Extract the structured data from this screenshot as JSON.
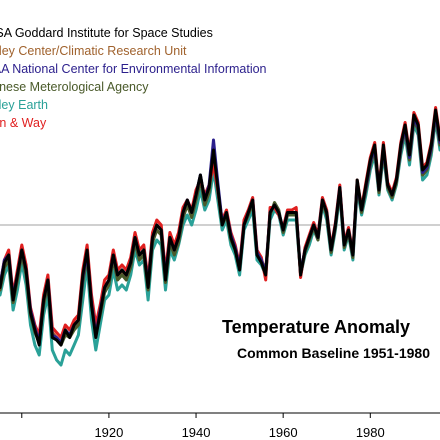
{
  "chart_data": {
    "type": "line",
    "title": "Temperature Anomaly",
    "subtitle": "Common Baseline 1951-1980",
    "xlabel": "",
    "ylabel": "",
    "xlim": [
      1895,
      1996
    ],
    "ylim": [
      -0.72,
      0.88
    ],
    "x_ticks": [
      "1920",
      "1940",
      "1960",
      "1980"
    ],
    "x_tick_values": [
      1920,
      1940,
      1960,
      1980
    ],
    "grid": false,
    "zero_line": true,
    "legend_placement": "top-left",
    "x": [
      1895,
      1896,
      1897,
      1898,
      1899,
      1900,
      1901,
      1902,
      1903,
      1904,
      1905,
      1906,
      1907,
      1908,
      1909,
      1910,
      1911,
      1912,
      1913,
      1914,
      1915,
      1916,
      1917,
      1918,
      1919,
      1920,
      1921,
      1922,
      1923,
      1924,
      1925,
      1926,
      1927,
      1928,
      1929,
      1930,
      1931,
      1932,
      1933,
      1934,
      1935,
      1936,
      1937,
      1938,
      1939,
      1940,
      1941,
      1942,
      1943,
      1944,
      1945,
      1946,
      1947,
      1948,
      1949,
      1950,
      1951,
      1952,
      1953,
      1954,
      1955,
      1956,
      1957,
      1958,
      1959,
      1960,
      1961,
      1962,
      1963,
      1964,
      1965,
      1966,
      1967,
      1968,
      1969,
      1970,
      1971,
      1972,
      1973,
      1974,
      1975,
      1976,
      1977,
      1978,
      1979,
      1980,
      1981,
      1982,
      1983,
      1984,
      1985,
      1986,
      1987,
      1988,
      1989,
      1990,
      1991,
      1992,
      1993,
      1994,
      1995,
      1996
    ],
    "series": [
      {
        "name": "NASA Goddard Institute for Space Studies",
        "color": "#000000",
        "values": [
          -0.25,
          -0.15,
          -0.12,
          -0.3,
          -0.2,
          -0.1,
          -0.18,
          -0.35,
          -0.42,
          -0.48,
          -0.3,
          -0.22,
          -0.45,
          -0.46,
          -0.48,
          -0.42,
          -0.45,
          -0.4,
          -0.38,
          -0.2,
          -0.1,
          -0.32,
          -0.45,
          -0.35,
          -0.25,
          -0.22,
          -0.12,
          -0.2,
          -0.18,
          -0.2,
          -0.15,
          -0.05,
          -0.12,
          -0.1,
          -0.25,
          -0.05,
          0.0,
          -0.02,
          -0.22,
          -0.05,
          -0.1,
          -0.05,
          0.05,
          0.1,
          0.05,
          0.12,
          0.2,
          0.1,
          0.15,
          0.3,
          0.15,
          0.0,
          0.05,
          -0.05,
          -0.1,
          -0.18,
          0.0,
          0.05,
          0.1,
          -0.12,
          -0.15,
          -0.2,
          0.05,
          0.08,
          0.05,
          -0.02,
          0.05,
          0.05,
          0.05,
          -0.2,
          -0.1,
          -0.05,
          0.0,
          -0.05,
          0.1,
          0.05,
          -0.1,
          0.0,
          0.15,
          -0.08,
          -0.02,
          -0.12,
          0.18,
          0.06,
          0.16,
          0.26,
          0.32,
          0.14,
          0.32,
          0.16,
          0.12,
          0.18,
          0.32,
          0.4,
          0.28,
          0.44,
          0.4,
          0.22,
          0.24,
          0.32,
          0.46,
          0.34
        ]
      },
      {
        "name": "Hadley Center/Climatic Research Unit",
        "color": "#a0622d",
        "values": [
          -0.26,
          -0.16,
          -0.13,
          -0.31,
          -0.21,
          -0.11,
          -0.19,
          -0.36,
          -0.42,
          -0.46,
          -0.31,
          -0.23,
          -0.43,
          -0.45,
          -0.47,
          -0.43,
          -0.44,
          -0.41,
          -0.39,
          -0.22,
          -0.12,
          -0.3,
          -0.42,
          -0.34,
          -0.26,
          -0.23,
          -0.13,
          -0.21,
          -0.19,
          -0.21,
          -0.16,
          -0.06,
          -0.13,
          -0.11,
          -0.24,
          -0.06,
          -0.02,
          -0.04,
          -0.21,
          -0.06,
          -0.11,
          -0.06,
          0.03,
          0.08,
          0.04,
          0.1,
          0.18,
          0.09,
          0.14,
          0.27,
          0.14,
          0.0,
          0.04,
          -0.05,
          -0.09,
          -0.17,
          0.0,
          0.04,
          0.09,
          -0.11,
          -0.14,
          -0.18,
          0.05,
          0.08,
          0.05,
          -0.02,
          0.05,
          0.05,
          0.05,
          -0.19,
          -0.1,
          -0.05,
          0.0,
          -0.05,
          0.09,
          0.04,
          -0.1,
          0.0,
          0.14,
          -0.08,
          -0.03,
          -0.12,
          0.16,
          0.06,
          0.14,
          0.24,
          0.3,
          0.13,
          0.3,
          0.15,
          0.11,
          0.17,
          0.3,
          0.38,
          0.26,
          0.42,
          0.38,
          0.2,
          0.22,
          0.3,
          0.44,
          0.32
        ]
      },
      {
        "name": "NOAA National Center for Environmental Information",
        "color": "#2b1f8c",
        "values": [
          -0.24,
          -0.14,
          -0.12,
          -0.29,
          -0.2,
          -0.1,
          -0.18,
          -0.34,
          -0.41,
          -0.47,
          -0.3,
          -0.22,
          -0.44,
          -0.45,
          -0.47,
          -0.42,
          -0.44,
          -0.4,
          -0.38,
          -0.21,
          -0.11,
          -0.31,
          -0.44,
          -0.34,
          -0.25,
          -0.22,
          -0.12,
          -0.2,
          -0.18,
          -0.2,
          -0.15,
          -0.05,
          -0.12,
          -0.1,
          -0.24,
          -0.05,
          0.0,
          -0.02,
          -0.21,
          -0.05,
          -0.1,
          -0.05,
          0.05,
          0.1,
          0.05,
          0.12,
          0.2,
          0.1,
          0.16,
          0.34,
          0.17,
          0.01,
          0.05,
          -0.04,
          -0.09,
          -0.17,
          0.0,
          0.05,
          0.1,
          -0.11,
          -0.14,
          -0.19,
          0.05,
          0.08,
          0.05,
          -0.02,
          0.05,
          0.05,
          0.05,
          -0.19,
          -0.1,
          -0.05,
          0.0,
          -0.05,
          0.1,
          0.05,
          -0.1,
          0.0,
          0.15,
          -0.08,
          -0.02,
          -0.12,
          0.17,
          0.06,
          0.15,
          0.25,
          0.31,
          0.14,
          0.31,
          0.16,
          0.12,
          0.18,
          0.31,
          0.39,
          0.27,
          0.43,
          0.39,
          0.21,
          0.23,
          0.31,
          0.45,
          0.33
        ]
      },
      {
        "name": "Japanese Meterological Agency",
        "color": "#4a5a2a",
        "values": [
          -0.26,
          -0.17,
          -0.14,
          -0.31,
          -0.22,
          -0.12,
          -0.2,
          -0.36,
          -0.43,
          -0.47,
          -0.32,
          -0.24,
          -0.45,
          -0.46,
          -0.48,
          -0.44,
          -0.45,
          -0.42,
          -0.4,
          -0.23,
          -0.13,
          -0.32,
          -0.44,
          -0.36,
          -0.27,
          -0.24,
          -0.14,
          -0.22,
          -0.2,
          -0.22,
          -0.17,
          -0.07,
          -0.14,
          -0.12,
          -0.26,
          -0.07,
          -0.02,
          -0.04,
          -0.23,
          -0.07,
          -0.12,
          -0.07,
          0.03,
          0.08,
          0.03,
          0.1,
          0.18,
          0.08,
          0.13,
          0.28,
          0.14,
          0.0,
          0.04,
          -0.06,
          -0.1,
          -0.18,
          0.0,
          0.04,
          0.09,
          -0.12,
          -0.15,
          -0.2,
          0.04,
          0.09,
          0.06,
          -0.03,
          0.04,
          0.04,
          0.04,
          -0.2,
          -0.11,
          -0.06,
          -0.01,
          -0.06,
          0.09,
          0.04,
          -0.11,
          -0.01,
          0.14,
          -0.09,
          -0.03,
          -0.13,
          0.16,
          0.05,
          0.14,
          0.24,
          0.3,
          0.13,
          0.3,
          0.15,
          0.11,
          0.17,
          0.3,
          0.38,
          0.26,
          0.42,
          0.38,
          0.2,
          0.22,
          0.3,
          0.44,
          0.32
        ]
      },
      {
        "name": "Berkeley Earth",
        "color": "#2aa198",
        "values": [
          -0.28,
          -0.2,
          -0.16,
          -0.34,
          -0.26,
          -0.15,
          -0.24,
          -0.4,
          -0.48,
          -0.52,
          -0.36,
          -0.28,
          -0.5,
          -0.54,
          -0.56,
          -0.5,
          -0.52,
          -0.48,
          -0.44,
          -0.3,
          -0.16,
          -0.38,
          -0.5,
          -0.4,
          -0.3,
          -0.28,
          -0.18,
          -0.26,
          -0.24,
          -0.26,
          -0.2,
          -0.1,
          -0.16,
          -0.14,
          -0.3,
          -0.1,
          -0.06,
          -0.08,
          -0.26,
          -0.1,
          -0.14,
          -0.08,
          0.0,
          0.04,
          0.0,
          0.06,
          0.14,
          0.06,
          0.1,
          0.22,
          0.1,
          -0.02,
          0.02,
          -0.08,
          -0.12,
          -0.2,
          -0.02,
          0.02,
          0.06,
          -0.14,
          -0.16,
          -0.2,
          0.02,
          0.06,
          0.04,
          -0.04,
          0.02,
          0.02,
          0.02,
          -0.2,
          -0.12,
          -0.08,
          -0.02,
          -0.06,
          0.08,
          0.02,
          -0.12,
          -0.02,
          0.12,
          -0.1,
          -0.04,
          -0.14,
          0.14,
          0.04,
          0.12,
          0.22,
          0.28,
          0.12,
          0.28,
          0.14,
          0.1,
          0.16,
          0.28,
          0.36,
          0.24,
          0.4,
          0.36,
          0.18,
          0.2,
          0.28,
          0.42,
          0.3
        ]
      },
      {
        "name": "Cowtan & Way",
        "color": "#e02020",
        "values": [
          -0.24,
          -0.14,
          -0.1,
          -0.28,
          -0.18,
          -0.08,
          -0.16,
          -0.33,
          -0.4,
          -0.44,
          -0.28,
          -0.2,
          -0.41,
          -0.43,
          -0.45,
          -0.4,
          -0.42,
          -0.38,
          -0.36,
          -0.18,
          -0.08,
          -0.28,
          -0.4,
          -0.32,
          -0.22,
          -0.2,
          -0.1,
          -0.18,
          -0.16,
          -0.18,
          -0.13,
          -0.03,
          -0.1,
          -0.08,
          -0.22,
          -0.03,
          0.02,
          0.0,
          -0.19,
          -0.03,
          -0.08,
          -0.03,
          0.07,
          0.1,
          0.06,
          0.14,
          0.18,
          0.12,
          0.16,
          0.24,
          0.14,
          0.02,
          0.06,
          -0.03,
          -0.08,
          -0.16,
          0.02,
          0.06,
          0.11,
          -0.1,
          -0.13,
          -0.22,
          0.07,
          0.07,
          0.04,
          -0.01,
          0.06,
          0.06,
          0.07,
          -0.21,
          -0.09,
          -0.04,
          0.01,
          -0.04,
          0.11,
          0.06,
          -0.09,
          0.01,
          0.16,
          -0.07,
          -0.01,
          -0.11,
          0.18,
          0.07,
          0.17,
          0.27,
          0.33,
          0.15,
          0.33,
          0.17,
          0.13,
          0.19,
          0.33,
          0.41,
          0.29,
          0.45,
          0.41,
          0.23,
          0.25,
          0.33,
          0.47,
          0.35
        ]
      }
    ]
  }
}
